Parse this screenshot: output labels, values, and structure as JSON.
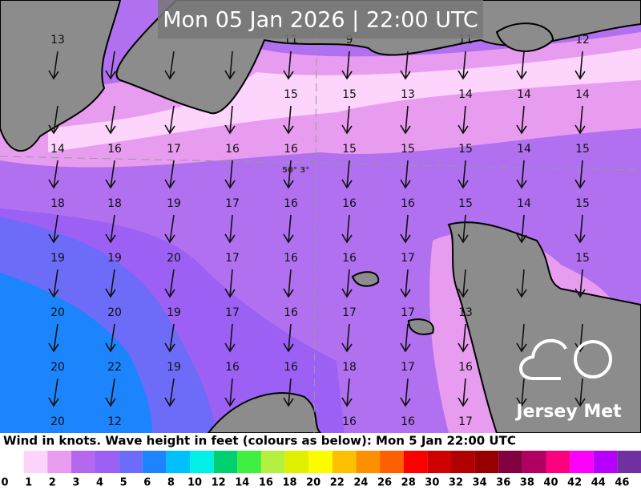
{
  "title": "Mon 05 Jan 2026 | 22:00 UTC",
  "coordinate_label": "50° 3°",
  "wind_rows": [
    [
      13,
      null,
      null,
      null,
      11,
      9,
      null,
      11,
      null,
      12
    ],
    [
      null,
      null,
      null,
      null,
      15,
      15,
      13,
      14,
      14,
      14
    ],
    [
      14,
      16,
      17,
      16,
      16,
      15,
      15,
      15,
      14,
      15
    ],
    [
      18,
      18,
      19,
      17,
      16,
      16,
      16,
      15,
      14,
      15
    ],
    [
      19,
      19,
      20,
      17,
      16,
      16,
      17,
      null,
      null,
      15
    ],
    [
      20,
      20,
      19,
      17,
      16,
      17,
      17,
      13,
      null,
      null
    ],
    [
      20,
      22,
      19,
      16,
      16,
      18,
      17,
      16,
      null,
      null
    ],
    [
      20,
      12,
      null,
      null,
      null,
      16,
      16,
      17,
      null,
      null
    ]
  ],
  "logo": "Jersey Met",
  "caption": "Wind in knots. Wave height in feet (colours as below): Mon 5 Jan 22:00 UTC",
  "legend": {
    "labels": [
      0,
      1,
      2,
      3,
      4,
      5,
      6,
      8,
      10,
      12,
      14,
      16,
      18,
      20,
      22,
      24,
      26,
      28,
      30,
      32,
      34,
      36,
      38,
      40,
      42,
      44,
      46
    ],
    "colors": [
      "#ffffff",
      "#fcd4fc",
      "#e89cf0",
      "#b468f0",
      "#9c60f4",
      "#6c6cf8",
      "#1c84fc",
      "#00c0fc",
      "#00f0e8",
      "#00d070",
      "#40f040",
      "#b4f040",
      "#e0f000",
      "#fcfc00",
      "#fcc000",
      "#fc9000",
      "#fc6000",
      "#fc0000",
      "#d00000",
      "#b00000",
      "#980000",
      "#800040",
      "#b00060",
      "#fc0080",
      "#fc00fc",
      "#b400fc",
      "#7030a0"
    ]
  }
}
